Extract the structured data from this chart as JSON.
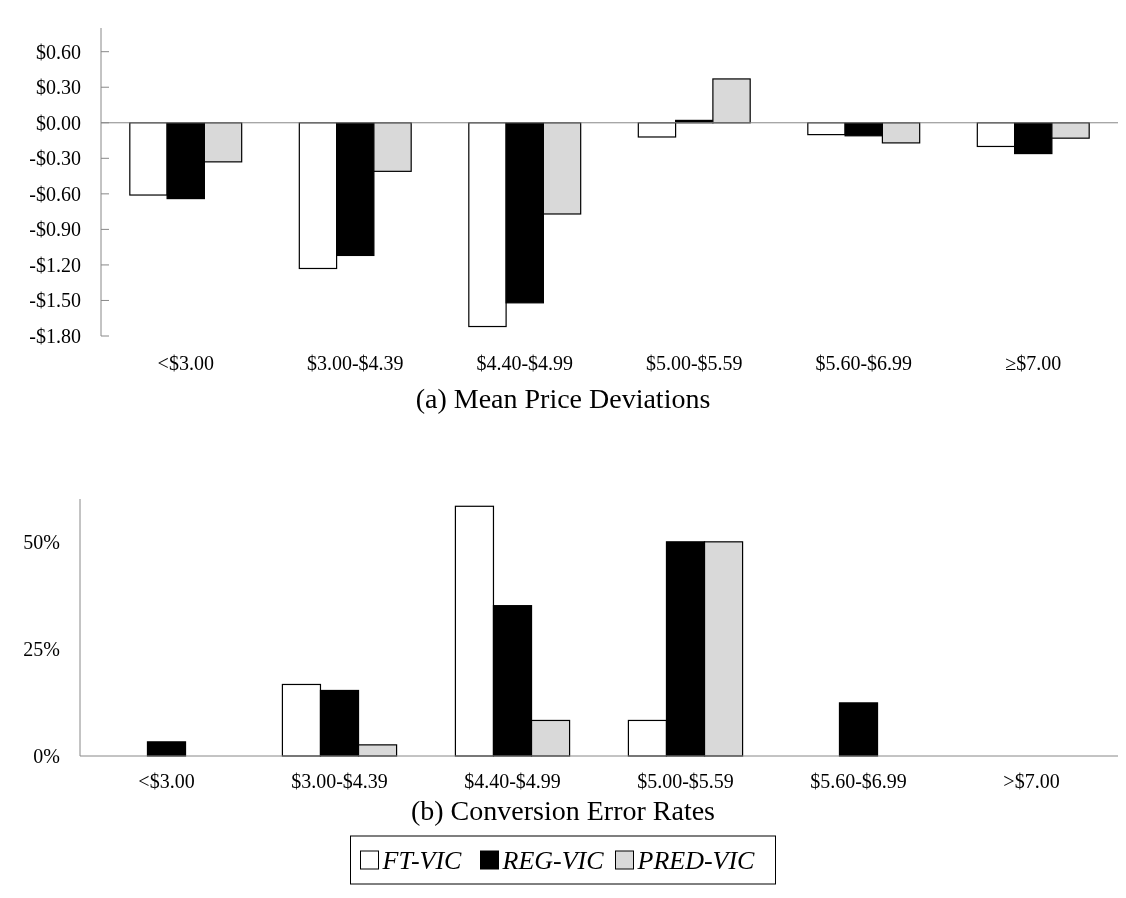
{
  "chart_data": [
    {
      "type": "bar",
      "title": "(a) Mean Price Deviations",
      "categories": [
        "<$3.00",
        "$3.00-$4.39",
        "$4.40-$4.99",
        "$5.00-$5.59",
        "$5.60-$6.99",
        "≥$7.00"
      ],
      "series": [
        {
          "color": "#ffffff",
          "values": [
            -0.61,
            -1.23,
            -1.72,
            -0.12,
            -0.1,
            -0.2
          ]
        },
        {
          "color": "#000000",
          "values": [
            -0.64,
            -1.12,
            -1.52,
            0.02,
            -0.11,
            -0.26
          ]
        },
        {
          "color": "#d9d9d9",
          "values": [
            -0.33,
            -0.41,
            -0.77,
            0.37,
            -0.17,
            -0.13
          ]
        }
      ],
      "ylim": [
        -1.8,
        0.8
      ],
      "yticks": [
        {
          "value": 0.6,
          "label": "$0.60"
        },
        {
          "value": 0.3,
          "label": "$0.30"
        },
        {
          "value": 0,
          "label": "$0.00"
        },
        {
          "value": -0.3,
          "label": "-$0.30"
        },
        {
          "value": -0.6,
          "label": "-$0.60"
        },
        {
          "value": -0.9,
          "label": "-$0.90"
        },
        {
          "value": -1.2,
          "label": "-$1.20"
        },
        {
          "value": -1.5,
          "label": "-$1.50"
        },
        {
          "value": -1.8,
          "label": "-$1.80"
        }
      ]
    },
    {
      "type": "bar",
      "title": "(b) Conversion Error Rates",
      "categories": [
        "<$3.00",
        "$3.00-$4.39",
        "$4.40-$4.99",
        "$5.00-$5.59",
        "$5.60-$6.99",
        ">$7.00"
      ],
      "series": [
        {
          "name": "FT-VIC",
          "color": "#ffffff",
          "values": [
            0,
            16.7,
            58.3,
            8.3,
            0,
            0
          ]
        },
        {
          "name": "REG-VIC",
          "color": "#000000",
          "values": [
            3.3,
            15.3,
            35.1,
            50,
            12.4,
            0
          ]
        },
        {
          "name": "PRED-VIC",
          "color": "#d9d9d9",
          "values": [
            0,
            2.6,
            8.3,
            50,
            0,
            0
          ]
        }
      ],
      "ylim": [
        0,
        60
      ],
      "yticks": [
        {
          "value": 0,
          "label": "0%"
        },
        {
          "value": 25,
          "label": "25%"
        },
        {
          "value": 50,
          "label": "50%"
        }
      ],
      "legend": "bottom"
    }
  ]
}
